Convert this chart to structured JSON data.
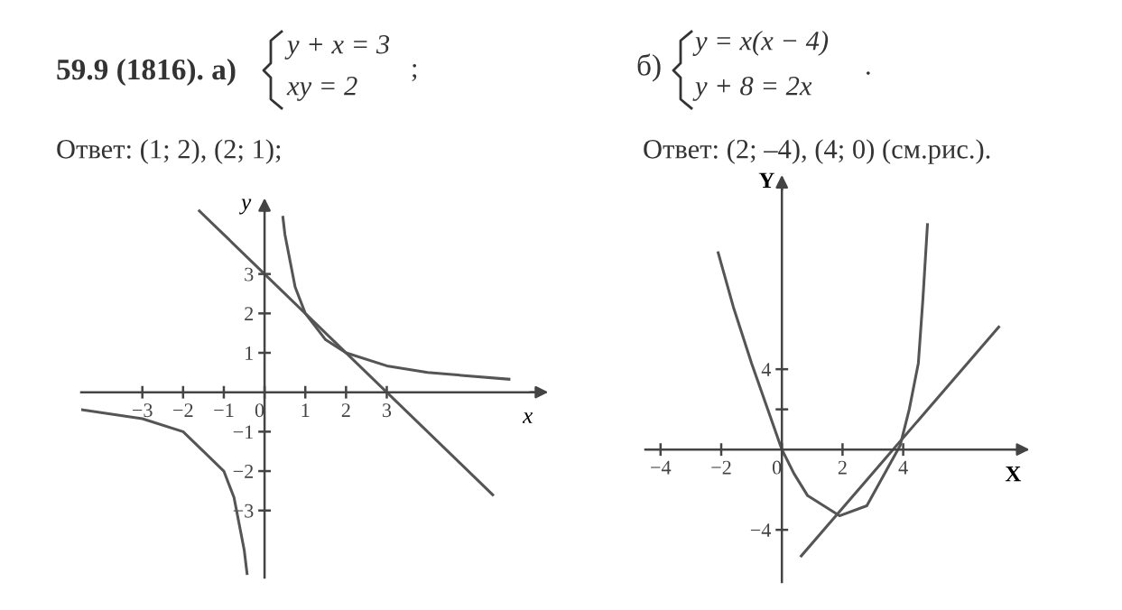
{
  "chart_data": [
    {
      "type": "line",
      "xlabel": "x",
      "ylabel": "y",
      "xlim": [
        -4.5,
        6.8
      ],
      "ylim": [
        -4.7,
        4.8
      ],
      "xticks": [
        -3,
        -2,
        -1,
        0,
        1,
        2,
        3
      ],
      "yticks": [
        -3,
        -2,
        -1,
        1,
        2,
        3
      ],
      "grid": false,
      "legend": false,
      "marker": "none",
      "line_style": "solid",
      "series": [
        {
          "color": "#555555",
          "x": [
            -1.6,
            5.6
          ],
          "values": [
            4.6,
            -2.6
          ]
        },
        {
          "color": "#555555",
          "x": [
            0.45,
            0.5,
            0.75,
            1,
            1.5,
            2,
            3,
            4,
            6
          ],
          "values": [
            4.44,
            4,
            2.67,
            2,
            1.33,
            1,
            0.67,
            0.5,
            0.33
          ]
        },
        {
          "color": "#555555",
          "x": [
            -4.5,
            -3,
            -2,
            -1,
            -0.75,
            -0.5,
            -0.43
          ],
          "values": [
            -0.44,
            -0.67,
            -1,
            -2,
            -2.67,
            -4,
            -4.6
          ]
        }
      ],
      "annotations": [
        "59.9 (1816). а)",
        "y + x = 3",
        "xy = 2",
        ";",
        "Ответ: (1; 2), (2; 1);"
      ]
    },
    {
      "type": "line",
      "xlabel": "X",
      "ylabel": "Y",
      "xlim": [
        -4.5,
        8.0
      ],
      "ylim": [
        -6.6,
        13.4
      ],
      "xticks": [
        -4,
        -2,
        0,
        2,
        4
      ],
      "yticks": [
        -4,
        {
          "value": 2,
          "label": null
        },
        4
      ],
      "grid": false,
      "legend": false,
      "marker": "none",
      "line_style": "solid",
      "series": [
        {
          "color": "#555555",
          "x": [
            -2.1,
            -1.6,
            -1.0,
            0,
            0.4,
            0.85,
            1.9,
            2.8,
            3.9,
            4.2,
            4.5,
            4.65,
            4.8
          ],
          "values": [
            9.8,
            7.1,
            4.3,
            0,
            -1.2,
            -2.3,
            -3.3,
            -2.8,
            0.2,
            2.0,
            4.3,
            7.5,
            11.2
          ]
        },
        {
          "color": "#555555",
          "x": [
            0.64,
            7.15
          ],
          "values": [
            -5.3,
            6.1
          ]
        }
      ],
      "annotations": [
        "б)",
        "y = x(x − 4)",
        "y + 8 = 2x",
        ".",
        "Ответ: (2; –4), (4; 0) (см.рис.)."
      ]
    }
  ]
}
